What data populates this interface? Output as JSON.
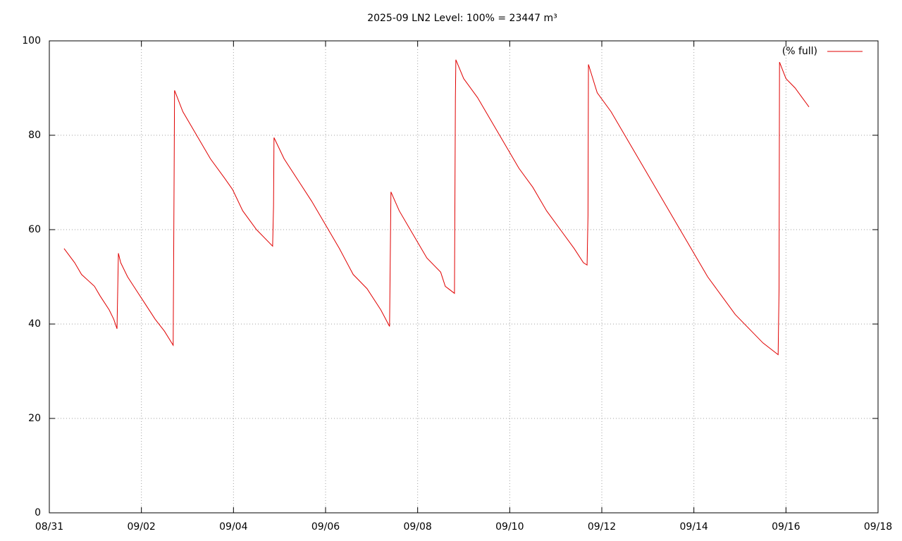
{
  "chart_data": {
    "type": "line",
    "title": "2025-09 LN2 Level: 100% = 23447 m³",
    "x": [
      0.32,
      0.55,
      0.7,
      0.98,
      1.1,
      1.3,
      1.4,
      1.47,
      1.5,
      1.55,
      1.7,
      1.9,
      2.1,
      2.3,
      2.5,
      2.69,
      2.71,
      2.72,
      2.9,
      3.2,
      3.5,
      3.8,
      3.98,
      4.2,
      4.5,
      4.85,
      4.87,
      4.88,
      5.1,
      5.4,
      5.7,
      6.0,
      6.3,
      6.6,
      6.9,
      7.2,
      7.39,
      7.42,
      7.6,
      7.9,
      8.2,
      8.5,
      8.6,
      8.8,
      8.82,
      8.83,
      9.0,
      9.3,
      9.6,
      9.9,
      10.2,
      10.5,
      10.8,
      11.1,
      11.4,
      11.6,
      11.68,
      11.7,
      11.71,
      11.9,
      12.2,
      12.5,
      12.8,
      13.1,
      13.4,
      13.7,
      14.0,
      14.3,
      14.6,
      14.9,
      15.2,
      15.5,
      15.83,
      15.85,
      15.86,
      16.0,
      16.2,
      16.35,
      16.5
    ],
    "series": [
      {
        "name": "(% full)",
        "color": "#e00000",
        "values": [
          56,
          53,
          50.5,
          48,
          46,
          43,
          41,
          39,
          55,
          53,
          50,
          47,
          44,
          41,
          38.5,
          35.5,
          70.5,
          89.5,
          85,
          80,
          75,
          71,
          68.5,
          64,
          60,
          56.5,
          65,
          79.5,
          75,
          70.5,
          66,
          61,
          56,
          50.5,
          47.5,
          43,
          39.5,
          68,
          64,
          59,
          54,
          51,
          48,
          46.5,
          88,
          96,
          92,
          88,
          83,
          78,
          73,
          69,
          64,
          60,
          56,
          53,
          52.5,
          63,
          95,
          89,
          85,
          80,
          75,
          70,
          65,
          60,
          55,
          50,
          46,
          42,
          39,
          36,
          33.5,
          47.5,
          95.5,
          92,
          90,
          88,
          86
        ]
      }
    ],
    "xlim": [
      0,
      18
    ],
    "xticks": [
      {
        "value": 0,
        "label": "08/31"
      },
      {
        "value": 2,
        "label": "09/02"
      },
      {
        "value": 4,
        "label": "09/04"
      },
      {
        "value": 6,
        "label": "09/06"
      },
      {
        "value": 8,
        "label": "09/08"
      },
      {
        "value": 10,
        "label": "09/10"
      },
      {
        "value": 12,
        "label": "09/12"
      },
      {
        "value": 14,
        "label": "09/14"
      },
      {
        "value": 16,
        "label": "09/16"
      },
      {
        "value": 18,
        "label": "09/18"
      }
    ],
    "ylim": [
      0,
      100
    ],
    "yticks": [
      0,
      20,
      40,
      60,
      80,
      100
    ],
    "grid": true,
    "legend": "top-right"
  }
}
